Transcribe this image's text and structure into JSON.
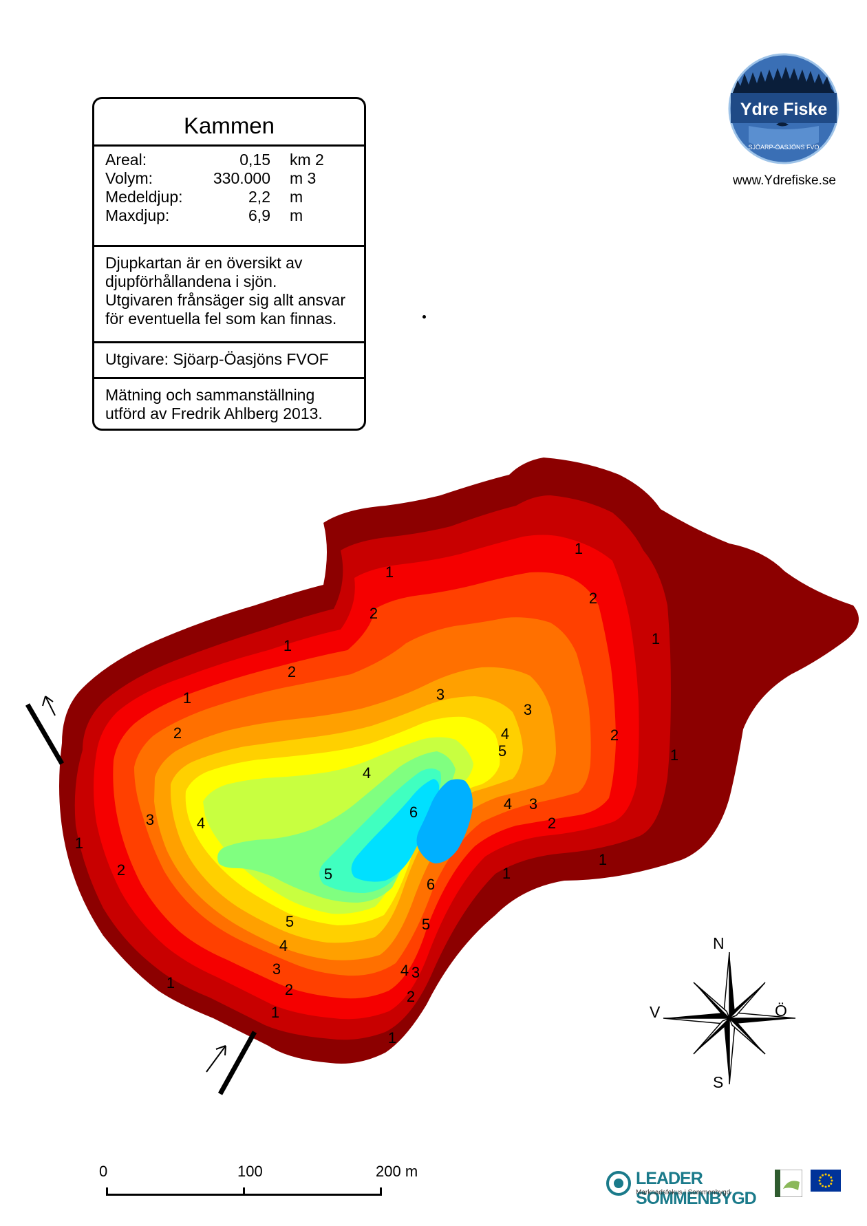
{
  "lake": {
    "name": "Kammen",
    "stats": [
      {
        "label": "Areal:",
        "value": "0,15",
        "unit": "km 2"
      },
      {
        "label": "Volym:",
        "value": "330.000",
        "unit": "m 3"
      },
      {
        "label": "Medeldjup:",
        "value": "2,2",
        "unit": "m"
      },
      {
        "label": "Maxdjup:",
        "value": "6,9",
        "unit": "m"
      }
    ],
    "disclaimer": [
      "Djupkartan är en översikt av",
      "djupförhållandena i sjön.",
      "Utgivaren frånsäger sig allt ansvar",
      "för eventuella fel som kan finnas."
    ],
    "publisher": "Utgivare: Sjöarp-Öasjöns FVOF",
    "credits": [
      "Mätning och sammanställning",
      "utförd av Fredrik Ahlberg 2013."
    ]
  },
  "logo": {
    "name": "Ydre Fiske",
    "subtitle": "SJÖARP-ÖASJÖNS FVO",
    "url": "www.Ydrefiske.se"
  },
  "depth_labels": [
    "1",
    "2",
    "1",
    "2",
    "1",
    "2",
    "1",
    "2",
    "3",
    "4",
    "1",
    "2",
    "3",
    "4",
    "5",
    "6",
    "3",
    "4",
    "5",
    "4",
    "3",
    "2",
    "1",
    "2",
    "1",
    "1",
    "2",
    "1",
    "3",
    "4",
    "5",
    "4",
    "3",
    "2",
    "1",
    "5",
    "6",
    "5",
    "4",
    "3",
    "2",
    "1"
  ],
  "compass": {
    "n": "N",
    "s": "S",
    "w": "V",
    "e": "Ö"
  },
  "scale_bar": {
    "labels": [
      "0",
      "100",
      "200 m"
    ]
  },
  "footer": {
    "leader": "LEADER SOMMENBYGD",
    "leader_sub": "Marknadsfokus i Sommenbygd"
  },
  "colors": {
    "depth_0": "#8c0000",
    "depth_1": "#c80000",
    "depth_1b": "#f50000",
    "depth_2": "#ff4000",
    "depth_2b": "#ff7000",
    "depth_3": "#ffa000",
    "depth_3b": "#ffd000",
    "depth_4": "#ffff00",
    "depth_4b": "#c8ff40",
    "depth_5": "#80ff80",
    "depth_5b": "#40ffc0",
    "depth_6": "#00e0ff",
    "depth_6b": "#00b0ff"
  }
}
